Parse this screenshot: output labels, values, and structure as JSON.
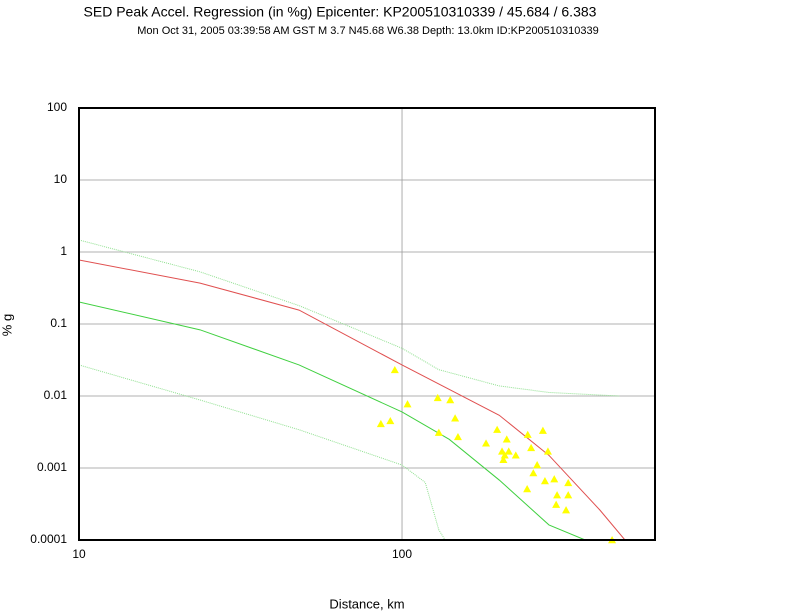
{
  "chart_data": {
    "type": "scatter",
    "title": "SED Peak Accel. Regression (in %g) Epicenter: KP200510310339 / 45.684 / 6.383",
    "subtitle": "Mon Oct 31, 2005 03:39:58 AM GST   M 3.7   N45.68 W6.38   Depth: 13.0km   ID:KP200510310339",
    "x_label": "Distance, km",
    "y_label": "% g",
    "xlog": true,
    "ylog": true,
    "grid": true,
    "xlim": [
      10,
      607
    ],
    "ylim": [
      0.0001,
      100
    ],
    "xticks": [
      10,
      100
    ],
    "yticks": [
      0.0001,
      0.001,
      0.01,
      0.1,
      1,
      10,
      100
    ],
    "lines": [
      {
        "color": "#e05050",
        "style": "solid",
        "x": [
          10,
          23.7,
          48,
          100,
          200,
          285,
          410,
          490
        ],
        "values": [
          0.774,
          0.37,
          0.156,
          0.027,
          0.0054,
          0.0015,
          0.00026,
          0.0001
        ]
      },
      {
        "color": "#40d040",
        "style": "solid",
        "x": [
          10,
          23.7,
          48,
          100,
          140,
          200,
          285,
          369
        ],
        "values": [
          0.202,
          0.083,
          0.027,
          0.006,
          0.0025,
          0.00068,
          0.000162,
          0.0001
        ]
      },
      {
        "color": "#90e090",
        "style": "dotted",
        "x": [
          10,
          23.7,
          48,
          100,
          130,
          200,
          285,
          470
        ],
        "values": [
          1.47,
          0.53,
          0.18,
          0.046,
          0.0232,
          0.0138,
          0.0112,
          0.01
        ]
      },
      {
        "color": "#90e090",
        "style": "dotted",
        "x": [
          10,
          23.7,
          48,
          100,
          118,
          130,
          136
        ],
        "values": [
          0.027,
          0.0088,
          0.0034,
          0.0011,
          0.00063,
          0.000138,
          0.0001
        ]
      }
    ],
    "points": {
      "color": "#ffff00",
      "marker": "triangle",
      "x": [
        86,
        92,
        95,
        104,
        129,
        130,
        141,
        146,
        149,
        182,
        197,
        204,
        208,
        206,
        211,
        214,
        225,
        244,
        245,
        251,
        255,
        262,
        273,
        277,
        283,
        296,
        300,
        302,
        322,
        327,
        327,
        447
      ],
      "values": [
        0.0041,
        0.0045,
        0.023,
        0.0077,
        0.0094,
        0.0031,
        0.0088,
        0.0049,
        0.0027,
        0.0022,
        0.0034,
        0.0017,
        0.0015,
        0.0013,
        0.0025,
        0.0017,
        0.0015,
        0.00051,
        0.0029,
        0.0019,
        0.00085,
        0.0011,
        0.0033,
        0.00066,
        0.0017,
        0.0007,
        0.00031,
        0.00042,
        0.00026,
        0.00062,
        0.00042,
        0.0001
      ]
    }
  }
}
